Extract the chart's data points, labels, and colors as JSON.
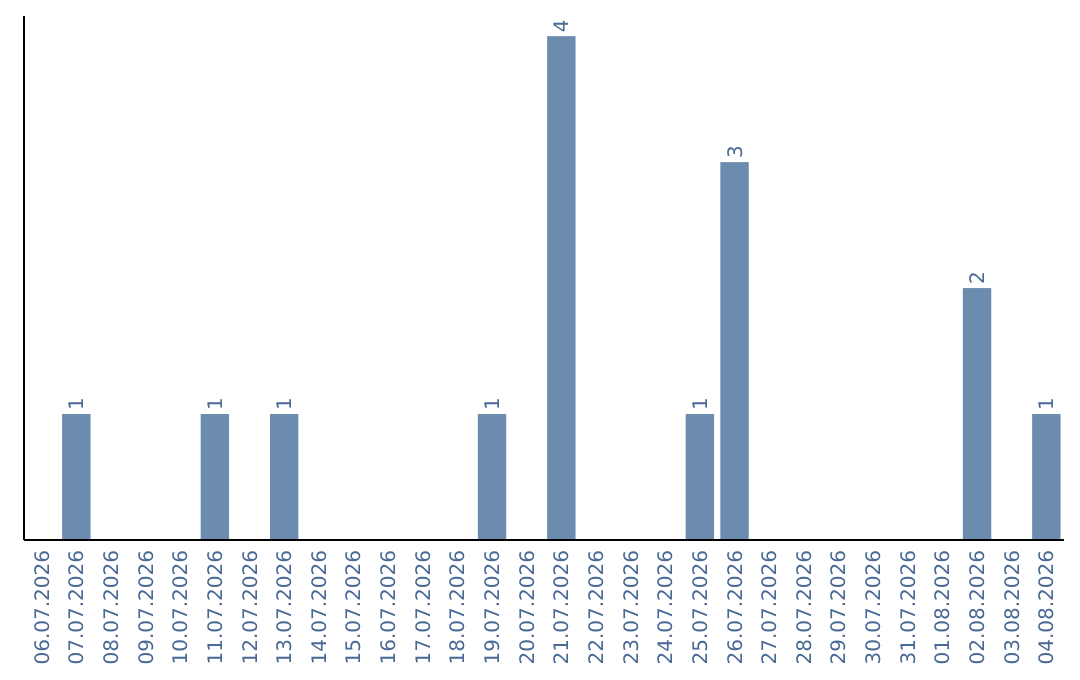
{
  "chart_data": {
    "type": "bar",
    "categories": [
      "06.07.2026",
      "07.07.2026",
      "08.07.2026",
      "09.07.2026",
      "10.07.2026",
      "11.07.2026",
      "12.07.2026",
      "13.07.2026",
      "14.07.2026",
      "15.07.2026",
      "16.07.2026",
      "17.07.2026",
      "18.07.2026",
      "19.07.2026",
      "20.07.2026",
      "21.07.2026",
      "22.07.2026",
      "23.07.2026",
      "24.07.2026",
      "25.07.2026",
      "26.07.2026",
      "27.07.2026",
      "28.07.2026",
      "29.07.2026",
      "30.07.2026",
      "31.07.2026",
      "01.08.2026",
      "02.08.2026",
      "03.08.2026",
      "04.08.2026"
    ],
    "values": [
      0,
      1,
      0,
      0,
      0,
      1,
      0,
      1,
      0,
      0,
      0,
      0,
      0,
      1,
      0,
      4,
      0,
      0,
      0,
      1,
      3,
      0,
      0,
      0,
      0,
      0,
      0,
      2,
      0,
      1
    ],
    "value_labels": [
      null,
      "1",
      null,
      null,
      null,
      "1",
      null,
      "1",
      null,
      null,
      null,
      null,
      null,
      "1",
      null,
      "4",
      null,
      null,
      null,
      "1",
      "3",
      null,
      null,
      null,
      null,
      null,
      null,
      "2",
      null,
      "1"
    ],
    "color": "#6b8cae"
  }
}
